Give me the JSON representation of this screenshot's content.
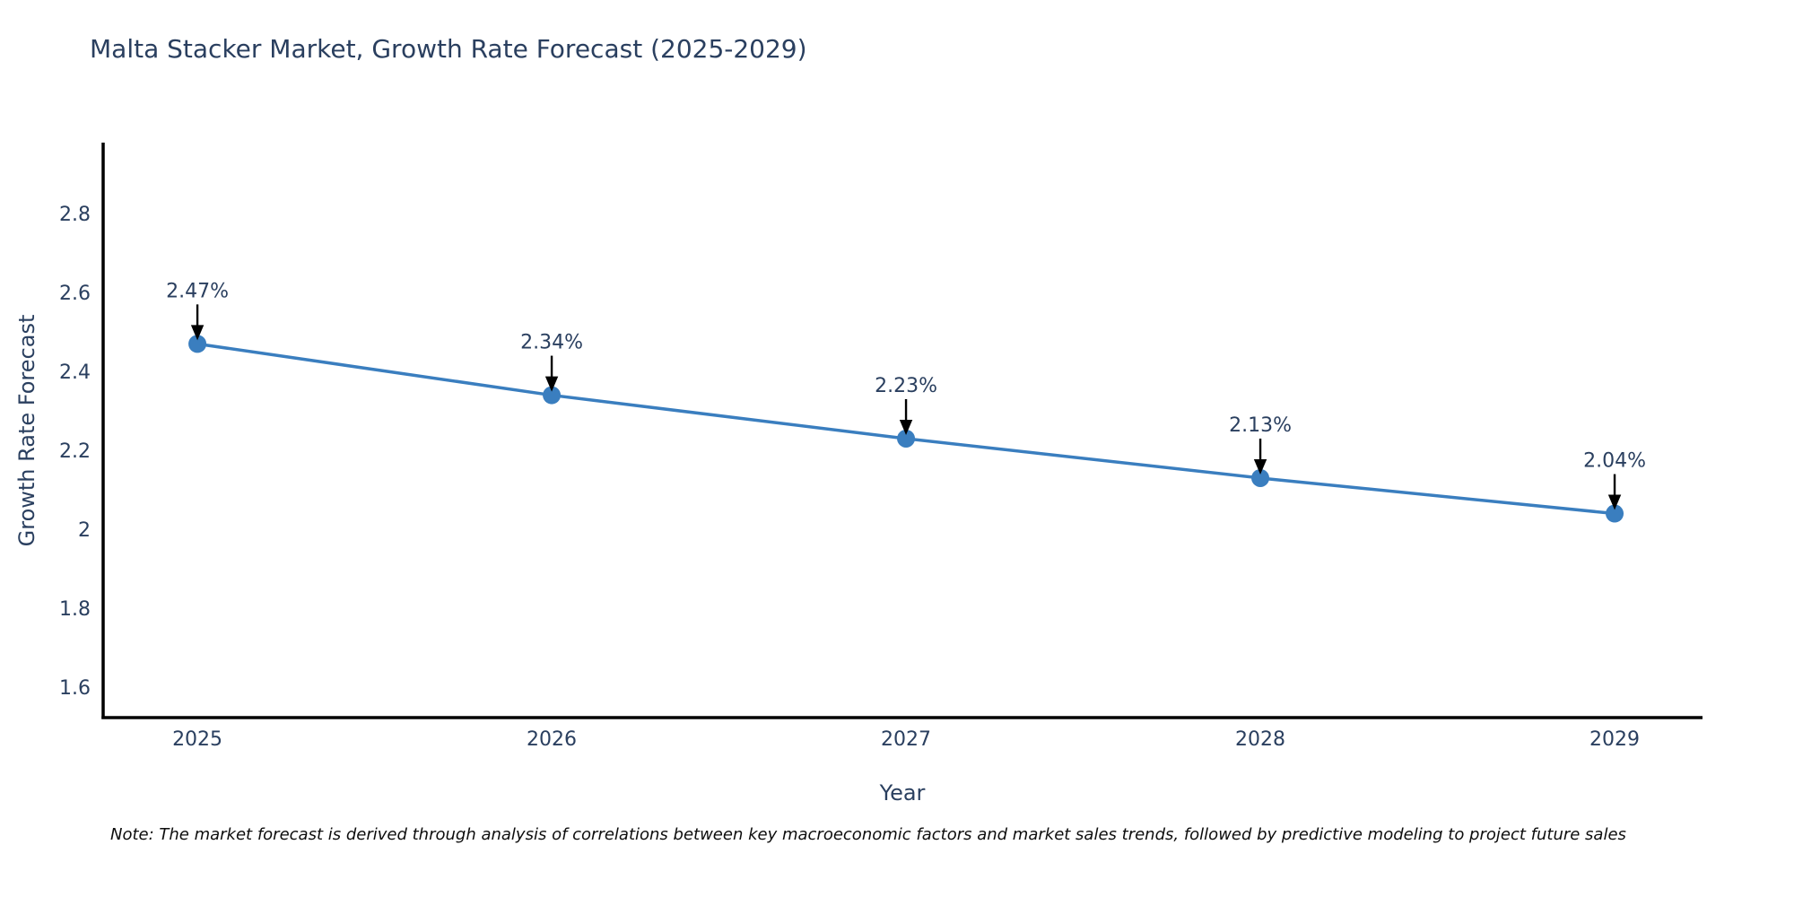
{
  "note": "Note: The market forecast is derived through analysis of correlations between key macroeconomic factors and market sales trends, followed by predictive modeling to project future sales",
  "chart_data": {
    "type": "line",
    "title": "Malta Stacker Market, Growth Rate Forecast (2025-2029)",
    "xlabel": "Year",
    "ylabel": "Growth Rate Forecast",
    "x": [
      2025,
      2026,
      2027,
      2028,
      2029
    ],
    "values": [
      2.47,
      2.34,
      2.23,
      2.13,
      2.04
    ],
    "point_labels": [
      "2.47%",
      "2.34%",
      "2.23%",
      "2.13%",
      "2.04%"
    ],
    "xticks": [
      2025,
      2026,
      2027,
      2028,
      2029
    ],
    "xtick_labels": [
      "2025",
      "2026",
      "2027",
      "2028",
      "2029"
    ],
    "yticks": [
      1.6,
      1.8,
      2.0,
      2.2,
      2.4,
      2.6,
      2.8
    ],
    "ytick_labels": [
      "1.6",
      "1.8",
      "2",
      "2.2",
      "2.4",
      "2.6",
      "2.8"
    ],
    "xlim": [
      2024.734,
      2029.248
    ],
    "ylim": [
      1.523,
      2.98
    ],
    "grid": false,
    "legend_position": "none",
    "annotation_style": "black-down-arrow-to-point",
    "colors": {
      "line": "#3a7ebf",
      "marker": "#3a7ebf",
      "axis_spine": "#000000",
      "tick_text": "#2a3f5f",
      "title_text": "#2a3f5f",
      "annotation_text": "#2a3f5f",
      "annotation_arrow": "#000000",
      "note_text": "#0d0d0d",
      "background": "#ffffff"
    }
  }
}
